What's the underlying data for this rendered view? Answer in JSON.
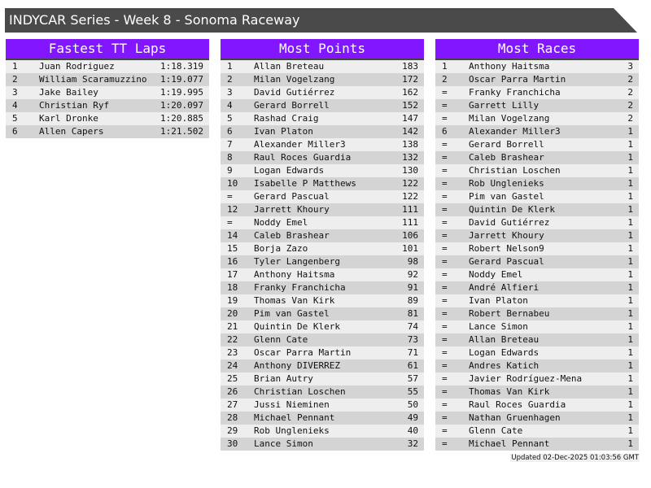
{
  "title": "INDYCAR Series - Week 8 - Sonoma Raceway",
  "colors": {
    "header": "#8217ff",
    "title_bar": "#4a4a4a"
  },
  "tables": [
    {
      "title": "Fastest TT Laps",
      "rows": [
        [
          "1",
          "Juan Rodriguez",
          "1:18.319"
        ],
        [
          "2",
          "William Scaramuzzino",
          "1:19.077"
        ],
        [
          "3",
          "Jake Bailey",
          "1:19.995"
        ],
        [
          "4",
          "Christian Ryf",
          "1:20.097"
        ],
        [
          "5",
          "Karl Dronke",
          "1:20.885"
        ],
        [
          "6",
          "Allen Capers",
          "1:21.502"
        ]
      ]
    },
    {
      "title": "Most Points",
      "rows": [
        [
          "1",
          "Allan Breteau",
          "183"
        ],
        [
          "2",
          "Milan Vogelzang",
          "172"
        ],
        [
          "3",
          "David Gutiérrez",
          "162"
        ],
        [
          "4",
          "Gerard Borrell",
          "152"
        ],
        [
          "5",
          "Rashad Craig",
          "147"
        ],
        [
          "6",
          "Ivan Platon",
          "142"
        ],
        [
          "7",
          "Alexander Miller3",
          "138"
        ],
        [
          "8",
          "Raul Roces Guardia",
          "132"
        ],
        [
          "9",
          "Logan Edwards",
          "130"
        ],
        [
          "10",
          "Isabelle P Matthews",
          "122"
        ],
        [
          "=",
          "Gerard Pascual",
          "122"
        ],
        [
          "12",
          "Jarrett Khoury",
          "111"
        ],
        [
          "=",
          "Noddy Emel",
          "111"
        ],
        [
          "14",
          "Caleb Brashear",
          "106"
        ],
        [
          "15",
          "Borja Zazo",
          "101"
        ],
        [
          "16",
          "Tyler Langenberg",
          "98"
        ],
        [
          "17",
          "Anthony Haitsma",
          "92"
        ],
        [
          "18",
          "Franky Franchicha",
          "91"
        ],
        [
          "19",
          "Thomas Van Kirk",
          "89"
        ],
        [
          "20",
          "Pim van Gastel",
          "81"
        ],
        [
          "21",
          "Quintin De Klerk",
          "74"
        ],
        [
          "22",
          "Glenn Cate",
          "73"
        ],
        [
          "23",
          "Oscar Parra Martin",
          "71"
        ],
        [
          "24",
          "Anthony DIVERREZ",
          "61"
        ],
        [
          "25",
          "Brian Autry",
          "57"
        ],
        [
          "26",
          "Christian Loschen",
          "55"
        ],
        [
          "27",
          "Jussi Nieminen",
          "50"
        ],
        [
          "28",
          "Michael Pennant",
          "49"
        ],
        [
          "29",
          "Rob Unglenieks",
          "40"
        ],
        [
          "30",
          "Lance Simon",
          "32"
        ]
      ]
    },
    {
      "title": "Most Races",
      "rows": [
        [
          "1",
          "Anthony Haitsma",
          "3"
        ],
        [
          "2",
          "Oscar Parra Martin",
          "2"
        ],
        [
          "=",
          "Franky Franchicha",
          "2"
        ],
        [
          "=",
          "Garrett Lilly",
          "2"
        ],
        [
          "=",
          "Milan Vogelzang",
          "2"
        ],
        [
          "6",
          "Alexander Miller3",
          "1"
        ],
        [
          "=",
          "Gerard Borrell",
          "1"
        ],
        [
          "=",
          "Caleb Brashear",
          "1"
        ],
        [
          "=",
          "Christian Loschen",
          "1"
        ],
        [
          "=",
          "Rob Unglenieks",
          "1"
        ],
        [
          "=",
          "Pim van Gastel",
          "1"
        ],
        [
          "=",
          "Quintin De Klerk",
          "1"
        ],
        [
          "=",
          "David Gutiérrez",
          "1"
        ],
        [
          "=",
          "Jarrett Khoury",
          "1"
        ],
        [
          "=",
          "Robert Nelson9",
          "1"
        ],
        [
          "=",
          "Gerard Pascual",
          "1"
        ],
        [
          "=",
          "Noddy Emel",
          "1"
        ],
        [
          "=",
          "André Alfieri",
          "1"
        ],
        [
          "=",
          "Ivan Platon",
          "1"
        ],
        [
          "=",
          "Robert Bernabeu",
          "1"
        ],
        [
          "=",
          "Lance Simon",
          "1"
        ],
        [
          "=",
          "Allan Breteau",
          "1"
        ],
        [
          "=",
          "Logan Edwards",
          "1"
        ],
        [
          "=",
          "Andres Katich",
          "1"
        ],
        [
          "=",
          "Javier Rodríguez-Mena",
          "1"
        ],
        [
          "=",
          "Thomas Van Kirk",
          "1"
        ],
        [
          "=",
          "Raul Roces Guardia",
          "1"
        ],
        [
          "=",
          "Nathan Gruenhagen",
          "1"
        ],
        [
          "=",
          "Glenn Cate",
          "1"
        ],
        [
          "=",
          "Michael Pennant",
          "1"
        ]
      ]
    }
  ],
  "footer": "Updated 02-Dec-2025 01:03:56 GMT"
}
